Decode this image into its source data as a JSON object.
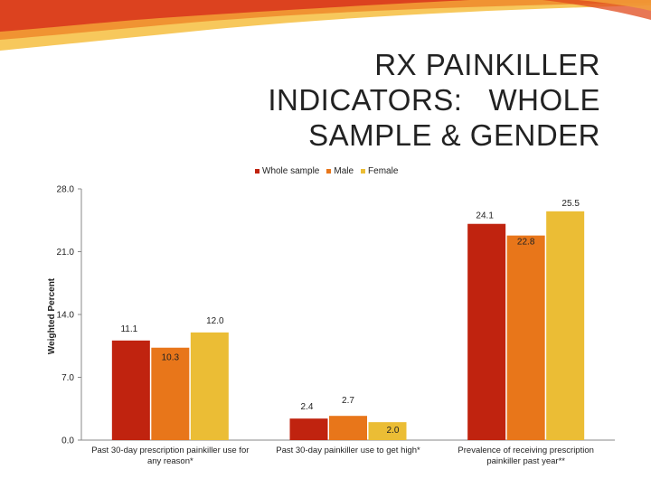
{
  "slide": {
    "title_lines": [
      "RX PAINKILLER",
      "INDICATORS:   WHOLE",
      "SAMPLE & GENDER"
    ]
  },
  "colors": {
    "whole": "#c0230f",
    "male": "#e8761a",
    "female": "#ebbd35",
    "axis": "#888888"
  },
  "chart_data": {
    "type": "bar",
    "title": "",
    "ylabel": "Weighted Percent",
    "xlabel": "",
    "ylim": [
      0,
      28
    ],
    "yticks": [
      "28.0",
      "21.0",
      "14.0",
      "7.0",
      "0.0"
    ],
    "ytick_values": [
      28,
      21,
      14,
      7,
      0
    ],
    "legend_position": "top",
    "categories": [
      [
        "Past 30-day prescription painkiller use for",
        "any reason*"
      ],
      [
        "Past 30-day painkiller use to get high*"
      ],
      [
        "Prevalence of receiving prescription",
        "painkiller past year**"
      ]
    ],
    "series": [
      {
        "name": "Whole sample",
        "values": [
          11.1,
          2.4,
          24.1
        ],
        "labels": [
          "11.1",
          "2.4",
          "24.1"
        ]
      },
      {
        "name": "Male",
        "values": [
          10.3,
          2.7,
          22.8
        ],
        "labels": [
          "10.3",
          "2.7",
          "22.8"
        ]
      },
      {
        "name": "Female",
        "values": [
          12.0,
          2.0,
          25.5
        ],
        "labels": [
          "12.0",
          "2.0",
          "25.5"
        ]
      }
    ]
  }
}
